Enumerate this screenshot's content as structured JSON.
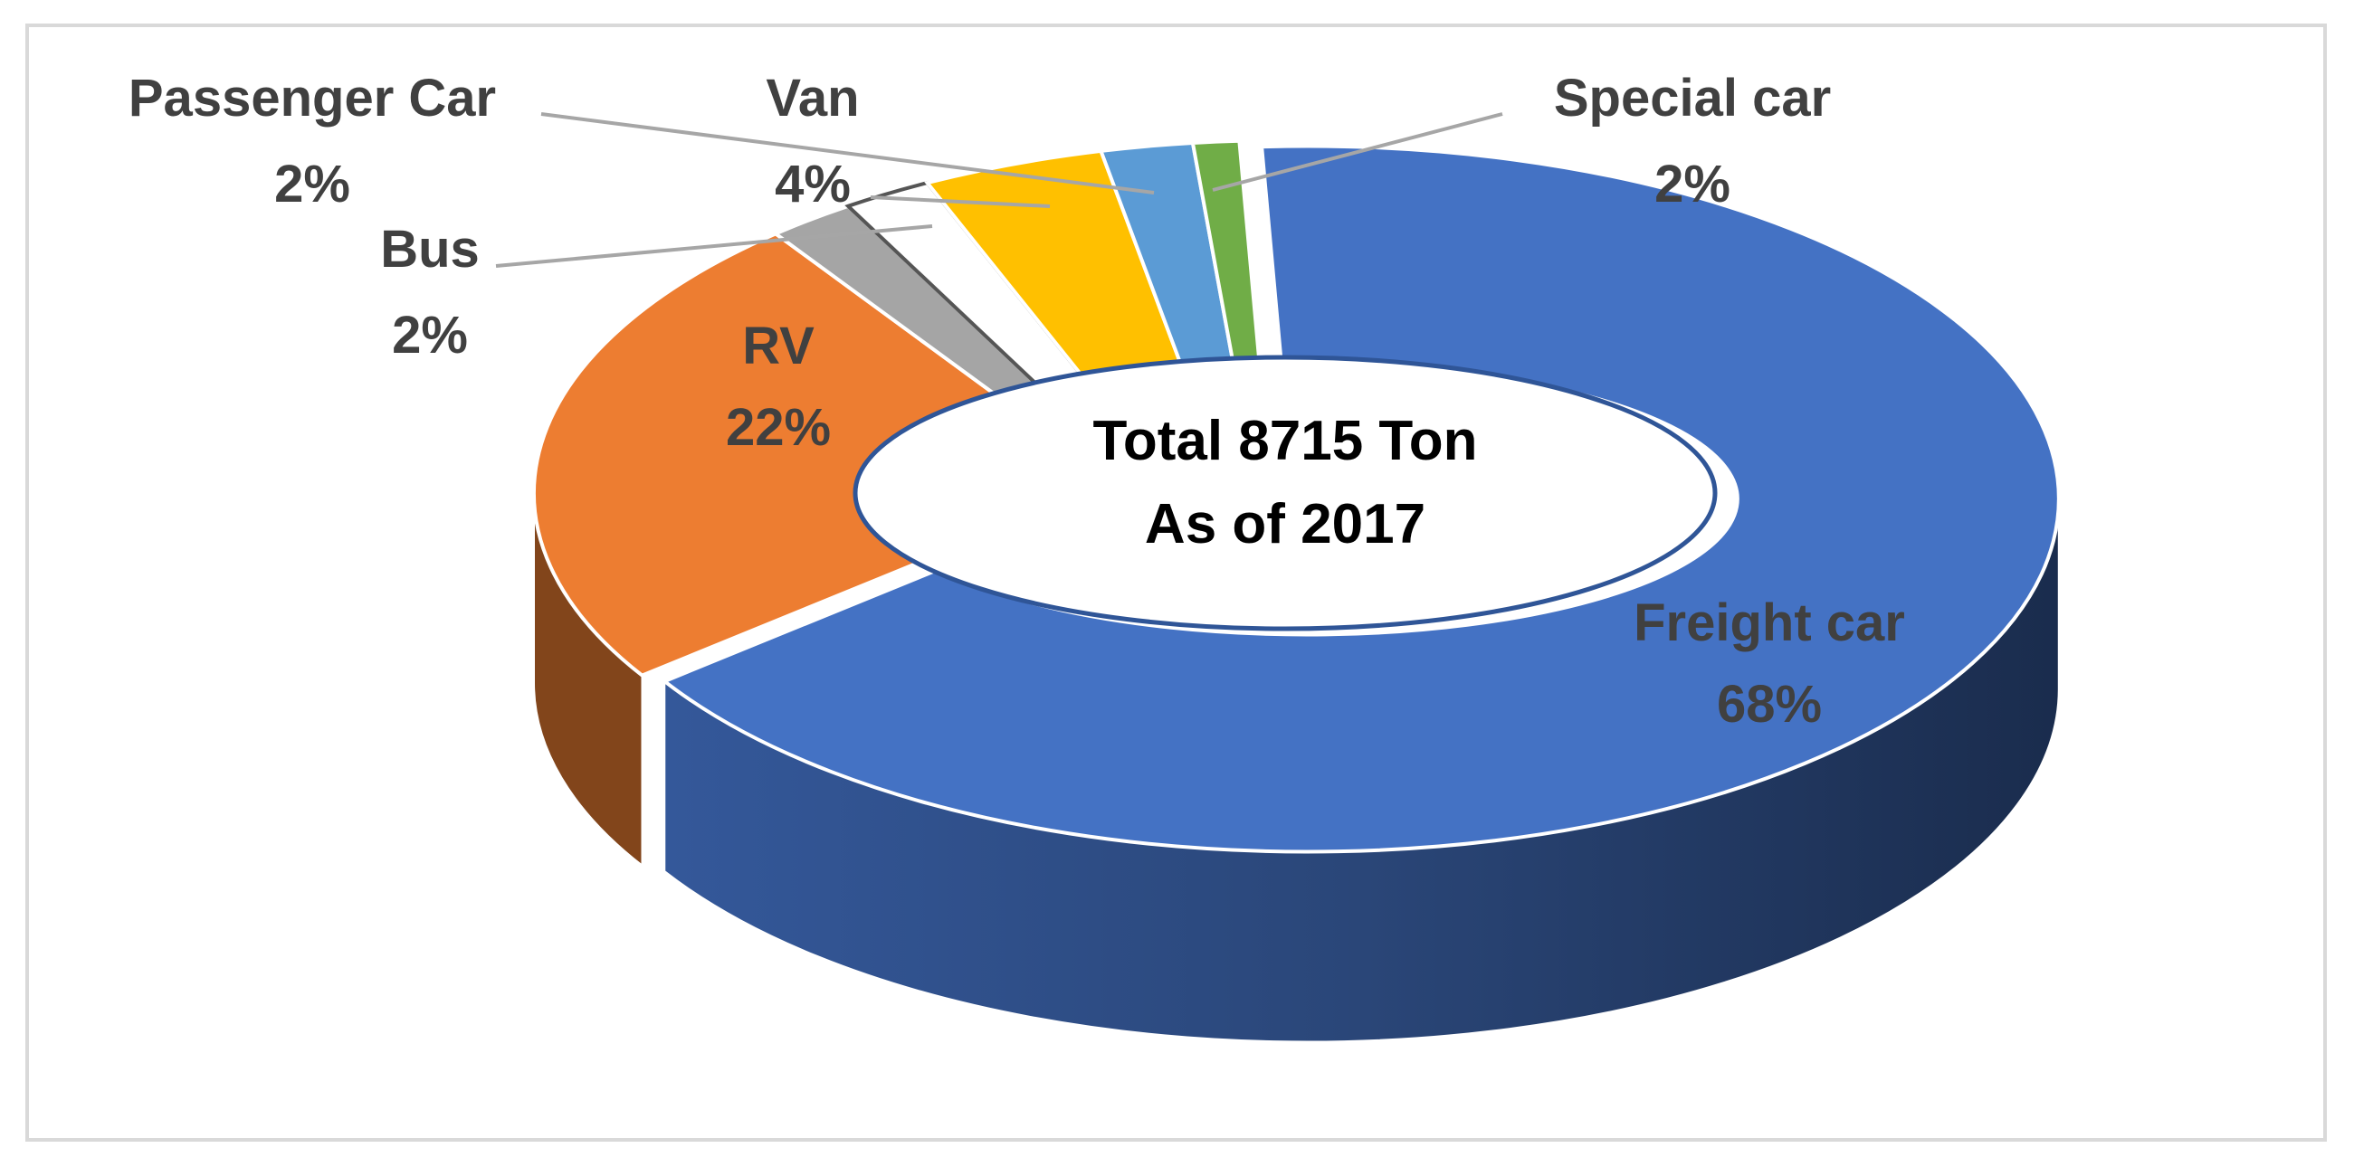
{
  "chart_data": {
    "type": "pie",
    "variant": "3d-doughnut",
    "center_text": [
      "Total 8715 Ton",
      "As of 2017"
    ],
    "slices": [
      {
        "label": "Freight car",
        "percent_label": "68%",
        "value": 68,
        "color": "#4472c4"
      },
      {
        "label": "RV",
        "percent_label": "22%",
        "value": 22,
        "color": "#ed7d31"
      },
      {
        "label": "Bus",
        "percent_label": "2%",
        "value": 2,
        "color": "#a5a5a5"
      },
      {
        "label": "Passenger Car",
        "percent_label": "2%",
        "value": 2,
        "color": "#ffffff"
      },
      {
        "label": "Van",
        "percent_label": "4%",
        "value": 4,
        "color": "#ffc000"
      },
      {
        "label": "Special car",
        "percent_label": "2%",
        "value": 2,
        "color": "#5b9bd5"
      },
      {
        "label": "",
        "percent_label": "",
        "value": 1,
        "color": "#70ad47"
      }
    ],
    "legend": "none"
  }
}
